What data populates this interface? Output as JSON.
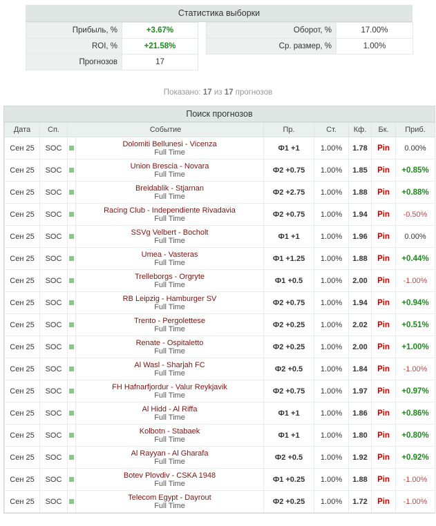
{
  "stats": {
    "title": "Статистика выборки",
    "profit_label": "Прибыль, %",
    "profit_value": "+3.67%",
    "turnover_label": "Оборот, %",
    "turnover_value": "17.00%",
    "roi_label": "ROI, %",
    "roi_value": "+21.58%",
    "avg_size_label": "Ср. размер, %",
    "avg_size_value": "1.00%",
    "forecasts_label": "Прогнозов",
    "forecasts_value": "17"
  },
  "shown": {
    "prefix": "Показано:",
    "count": "17",
    "of": "из",
    "total": "17",
    "suffix": "прогнозов"
  },
  "search": {
    "title": "Поиск прогнозов",
    "columns": [
      "Дата",
      "Сп.",
      "Событие",
      "Пр.",
      "Ст.",
      "Кф.",
      "Бк.",
      "Приб."
    ],
    "rows": [
      {
        "date": "Сен 25",
        "sport": "SOC",
        "event": "Dolomiti Bellunesi - Vicenza",
        "sub": "Full Time",
        "pick": "Ф1 +1",
        "stake": "1.00%",
        "odds": "1.78",
        "bk": "Pin",
        "profit": "0.00%",
        "sign": "zero"
      },
      {
        "date": "Сен 25",
        "sport": "SOC",
        "event": "Union Brescia - Novara",
        "sub": "Full Time",
        "pick": "Ф2 +0.75",
        "stake": "1.00%",
        "odds": "1.85",
        "bk": "Pin",
        "profit": "+0.85%",
        "sign": "pos"
      },
      {
        "date": "Сен 25",
        "sport": "SOC",
        "event": "Breidablik - Stjarnan",
        "sub": "Full Time",
        "pick": "Ф2 +2.75",
        "stake": "1.00%",
        "odds": "1.88",
        "bk": "Pin",
        "profit": "+0.88%",
        "sign": "pos"
      },
      {
        "date": "Сен 25",
        "sport": "SOC",
        "event": "Racing Club - Independiente Rivadavia",
        "sub": "Full Time",
        "pick": "Ф2 +0.75",
        "stake": "1.00%",
        "odds": "1.94",
        "bk": "Pin",
        "profit": "-0.50%",
        "sign": "neg"
      },
      {
        "date": "Сен 25",
        "sport": "SOC",
        "event": "SSVg Velbert - Bocholt",
        "sub": "Full Time",
        "pick": "Ф1 +1",
        "stake": "1.00%",
        "odds": "1.96",
        "bk": "Pin",
        "profit": "0.00%",
        "sign": "zero"
      },
      {
        "date": "Сен 25",
        "sport": "SOC",
        "event": "Umea - Vasteras",
        "sub": "Full Time",
        "pick": "Ф1 +1.25",
        "stake": "1.00%",
        "odds": "1.88",
        "bk": "Pin",
        "profit": "+0.44%",
        "sign": "pos"
      },
      {
        "date": "Сен 25",
        "sport": "SOC",
        "event": "Trelleborgs - Orgryte",
        "sub": "Full Time",
        "pick": "Ф1 +0.5",
        "stake": "1.00%",
        "odds": "2.00",
        "bk": "Pin",
        "profit": "-1.00%",
        "sign": "neg"
      },
      {
        "date": "Сен 25",
        "sport": "SOC",
        "event": "RB Leipzig - Hamburger SV",
        "sub": "Full Time",
        "pick": "Ф2 +0.75",
        "stake": "1.00%",
        "odds": "1.94",
        "bk": "Pin",
        "profit": "+0.94%",
        "sign": "pos"
      },
      {
        "date": "Сен 25",
        "sport": "SOC",
        "event": "Trento - Pergolettese",
        "sub": "Full Time",
        "pick": "Ф2 +0.25",
        "stake": "1.00%",
        "odds": "2.02",
        "bk": "Pin",
        "profit": "+0.51%",
        "sign": "pos"
      },
      {
        "date": "Сен 25",
        "sport": "SOC",
        "event": "Renate - Ospitaletto",
        "sub": "Full Time",
        "pick": "Ф2 +0.25",
        "stake": "1.00%",
        "odds": "2.00",
        "bk": "Pin",
        "profit": "+1.00%",
        "sign": "pos"
      },
      {
        "date": "Сен 25",
        "sport": "SOC",
        "event": "Al Wasl - Sharjah FC",
        "sub": "Full Time",
        "pick": "Ф2 +0.5",
        "stake": "1.00%",
        "odds": "1.84",
        "bk": "Pin",
        "profit": "-1.00%",
        "sign": "neg"
      },
      {
        "date": "Сен 25",
        "sport": "SOC",
        "event": "FH Hafnarfjordur - Valur Reykjavik",
        "sub": "Full Time",
        "pick": "Ф2 +0.75",
        "stake": "1.00%",
        "odds": "1.97",
        "bk": "Pin",
        "profit": "+0.97%",
        "sign": "pos"
      },
      {
        "date": "Сен 25",
        "sport": "SOC",
        "event": "Al Hidd - Al Riffa",
        "sub": "Full Time",
        "pick": "Ф1 +1",
        "stake": "1.00%",
        "odds": "1.86",
        "bk": "Pin",
        "profit": "+0.86%",
        "sign": "pos"
      },
      {
        "date": "Сен 25",
        "sport": "SOC",
        "event": "Kolbotn - Stabaek",
        "sub": "Full Time",
        "pick": "Ф1 +1",
        "stake": "1.00%",
        "odds": "1.80",
        "bk": "Pin",
        "profit": "+0.80%",
        "sign": "pos"
      },
      {
        "date": "Сен 25",
        "sport": "SOC",
        "event": "Al Rayyan - Al Gharafa",
        "sub": "Full Time",
        "pick": "Ф2 +0.5",
        "stake": "1.00%",
        "odds": "1.92",
        "bk": "Pin",
        "profit": "+0.92%",
        "sign": "pos"
      },
      {
        "date": "Сен 25",
        "sport": "SOC",
        "event": "Botev Plovdiv - CSKA 1948",
        "sub": "Full Time",
        "pick": "Ф1 +0.25",
        "stake": "1.00%",
        "odds": "1.88",
        "bk": "Pin",
        "profit": "-1.00%",
        "sign": "neg"
      },
      {
        "date": "Сен 25",
        "sport": "SOC",
        "event": "Telecom Egypt - Dayrout",
        "sub": "Full Time",
        "pick": "Ф2 +0.25",
        "stake": "1.00%",
        "odds": "1.72",
        "bk": "Pin",
        "profit": "-1.00%",
        "sign": "neg"
      }
    ]
  }
}
